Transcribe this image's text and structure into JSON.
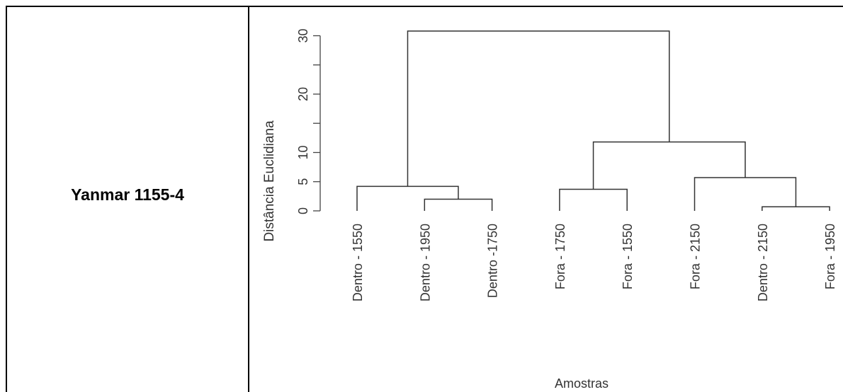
{
  "table": {
    "row_label": "Yanmar 1155-4"
  },
  "chart_data": {
    "type": "dendrogram",
    "title": "",
    "xlabel": "Amostras",
    "ylabel": "Distância Euclidiana",
    "ylim": [
      0,
      32
    ],
    "y_ticks": [
      0,
      5,
      10,
      20,
      30
    ],
    "y_minor_ticks": [
      25,
      15
    ],
    "leaves": [
      "Dentro - 1550",
      "Dentro - 1950",
      "Dentro -1750",
      "Fora - 1750",
      "Fora - 1550",
      "Fora - 2150",
      "Dentro - 2150",
      "Fora - 1950"
    ],
    "merges": [
      {
        "left": "Dentro - 1950",
        "right": "Dentro -1750",
        "height": 2.0
      },
      {
        "left": "Dentro - 2150",
        "right": "Fora - 1950",
        "height": 0.7
      },
      {
        "left": "Dentro - 1550",
        "right": "(Dentro - 1950, Dentro -1750)",
        "height": 4.2
      },
      {
        "left": "Fora - 1750",
        "right": "Fora - 1550",
        "height": 3.7
      },
      {
        "left": "Fora - 2150",
        "right": "(Dentro - 2150, Fora - 1950)",
        "height": 5.7
      },
      {
        "left": "(Fora - 1750, Fora - 1550)",
        "right": "(Fora - 2150, (Dentro - 2150, Fora - 1950))",
        "height": 11.8
      },
      {
        "left": "(Dentro - 1550, (Dentro - 1950, Dentro -1750))",
        "right": "((Fora - 1750, Fora - 1550), (Fora - 2150, (Dentro - 2150, Fora - 1950)))",
        "height": 30.8
      }
    ]
  }
}
